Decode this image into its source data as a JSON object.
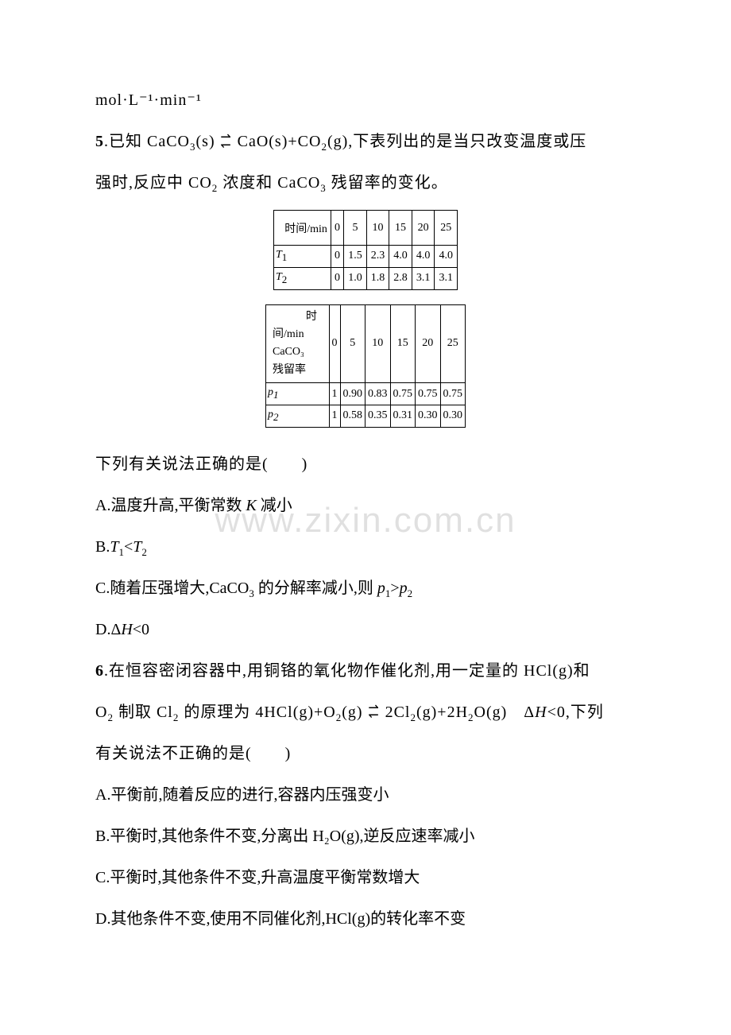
{
  "fragment_top": "mol·L⁻¹·min⁻¹",
  "q5": {
    "num": "5",
    "stem_a": ".已知 CaCO",
    "stem_b": "(s)",
    "stem_c": "CaO(s)+CO",
    "stem_d": "(g),下表列出的是当只改变温度或压",
    "stem_e": "强时,反应中 CO",
    "stem_f": " 浓度和 CaCO",
    "stem_g": " 残留率的变化。",
    "tail": "下列有关说法正确的是(　　)",
    "optA_a": "A.温度升高,平衡常数 ",
    "optA_b": " 减小",
    "optB_a": "B.",
    "optB_b": "<",
    "optC_a": "C.随着压强增大,CaCO",
    "optC_b": " 的分解率减小,则 ",
    "optC_c": ">",
    "optD": "D.Δ",
    "optD_b": "<0"
  },
  "table1": {
    "header": "时间/min",
    "cols": [
      "0",
      "5",
      "10",
      "15",
      "20",
      "25"
    ],
    "row1_label": "T",
    "row1_sub": "1",
    "row1": [
      "0",
      "1.5",
      "2.3",
      "4.0",
      "4.0",
      "4.0"
    ],
    "row2_label": "T",
    "row2_sub": "2",
    "row2": [
      "0",
      "1.0",
      "1.8",
      "2.8",
      "3.1",
      "3.1"
    ]
  },
  "table2": {
    "header_line1": "　　　时间/min",
    "header_line2": "CaCO₃",
    "header_line3": "残留率",
    "cols": [
      "0",
      "5",
      "10",
      "15",
      "20",
      "25"
    ],
    "row1_label": "p",
    "row1_sub": "1",
    "row1": [
      "1",
      "0.90",
      "0.83",
      "0.75",
      "0.75",
      "0.75"
    ],
    "row2_label": "p",
    "row2_sub": "2",
    "row2": [
      "1",
      "0.58",
      "0.35",
      "0.31",
      "0.30",
      "0.30"
    ]
  },
  "q6": {
    "num": "6",
    "stem_a": ".在恒容密闭容器中,用铜铬的氧化物作催化剂,用一定量的 HCl(g)和",
    "stem_b": "O",
    "stem_c": " 制取 Cl",
    "stem_d": " 的原理为 4HCl(g)+O",
    "stem_e": "(g)",
    "stem_f": "2Cl",
    "stem_g": "(g)+2H",
    "stem_h": "O(g)　Δ",
    "stem_i": "<0,下列",
    "stem_j": "有关说法不正确的是(　　)",
    "optA": "A.平衡前,随着反应的进行,容器内压强变小",
    "optB": "B.平衡时,其他条件不变,分离出 H₂O(g),逆反应速率减小",
    "optC": "C.平衡时,其他条件不变,升高温度平衡常数增大",
    "optD": "D.其他条件不变,使用不同催化剂,HCl(g)的转化率不变"
  },
  "watermark": "www.zixin.com.cn",
  "symbols": {
    "K": "K",
    "T1": "T",
    "T2": "T",
    "p1": "p",
    "p2": "p",
    "H": "H"
  }
}
